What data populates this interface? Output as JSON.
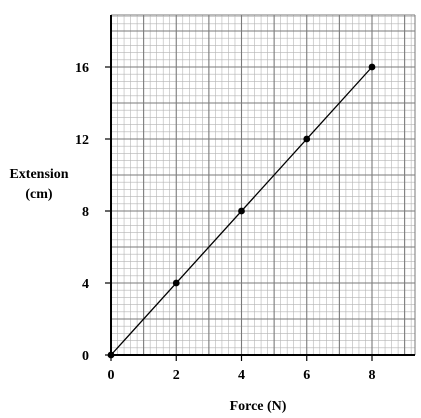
{
  "chart_data": {
    "type": "line",
    "title": "",
    "xlabel": "Force (N)",
    "ylabel_lines": [
      "Extension",
      "(cm)"
    ],
    "xlim": [
      0,
      9.3
    ],
    "ylim": [
      0,
      18.7
    ],
    "xticks": [
      0,
      2,
      4,
      6,
      8
    ],
    "yticks": [
      0,
      4,
      8,
      12,
      16
    ],
    "grid": true,
    "points": [
      {
        "x": 0,
        "y": 0
      },
      {
        "x": 2,
        "y": 4
      },
      {
        "x": 4,
        "y": 8
      },
      {
        "x": 6,
        "y": 12
      },
      {
        "x": 8,
        "y": 16
      }
    ],
    "best_fit_line": {
      "from": {
        "x": 0,
        "y": 0
      },
      "to": {
        "x": 8,
        "y": 16
      }
    },
    "colors": {
      "grid_minor": "#b4b4b4",
      "grid_major": "#7a7a7a",
      "axis": "#000000",
      "line": "#000000",
      "point": "#000000"
    }
  }
}
